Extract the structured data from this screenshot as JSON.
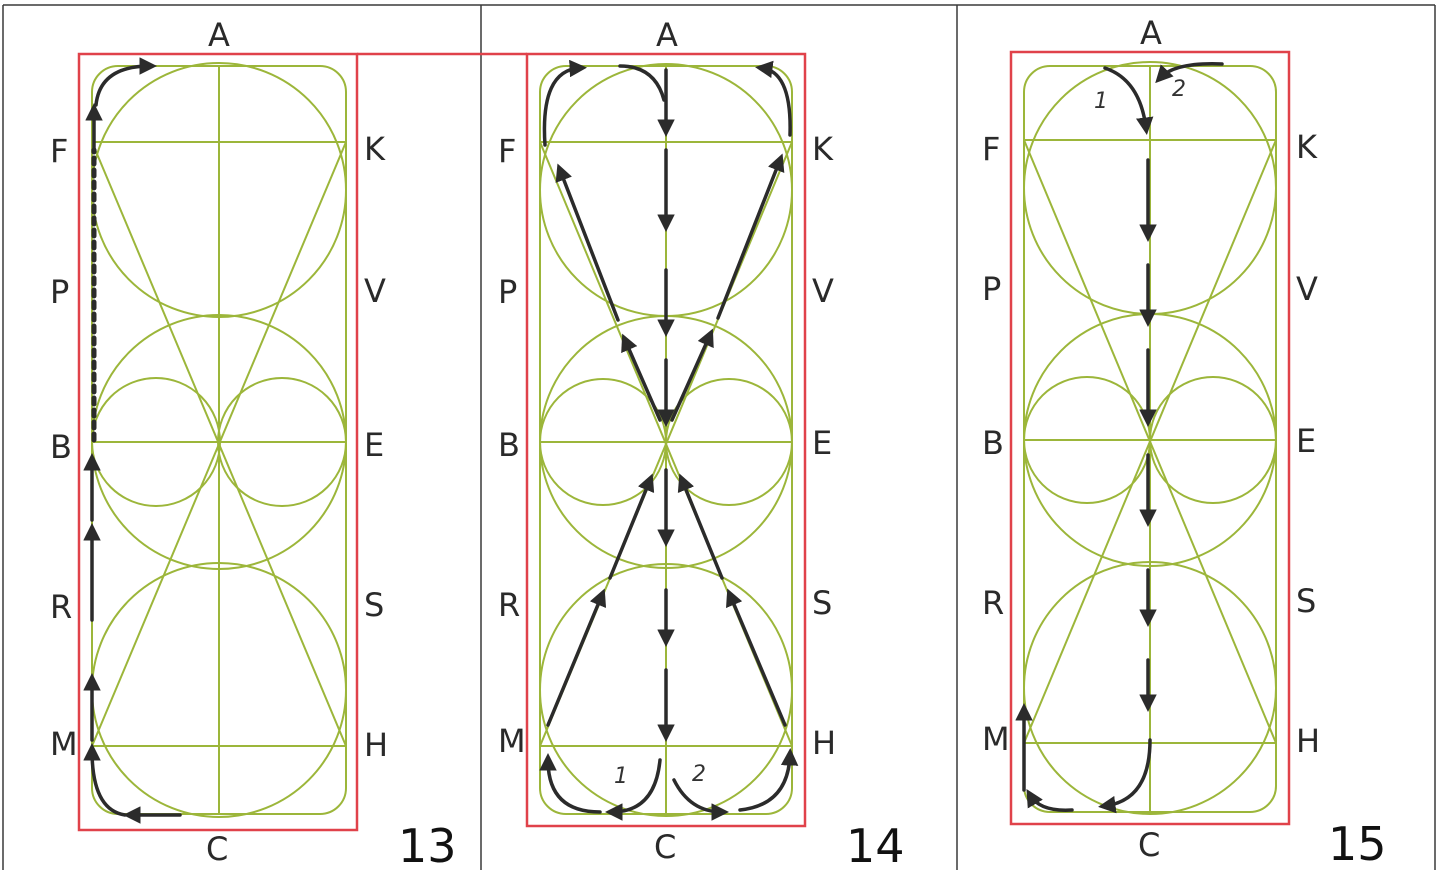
{
  "letters": {
    "top": "A",
    "bottom": "C",
    "left": [
      "F",
      "P",
      "B",
      "R",
      "M"
    ],
    "right": [
      "K",
      "V",
      "E",
      "S",
      "H"
    ]
  },
  "panels": [
    {
      "number": "13",
      "marks": []
    },
    {
      "number": "14",
      "marks": [
        "1",
        "2"
      ]
    },
    {
      "number": "15",
      "marks": [
        "1",
        "2"
      ]
    }
  ],
  "colors": {
    "arena_border": "#e0424a",
    "pattern_lines": "#9cb63a",
    "route": "#2b2b2b"
  }
}
